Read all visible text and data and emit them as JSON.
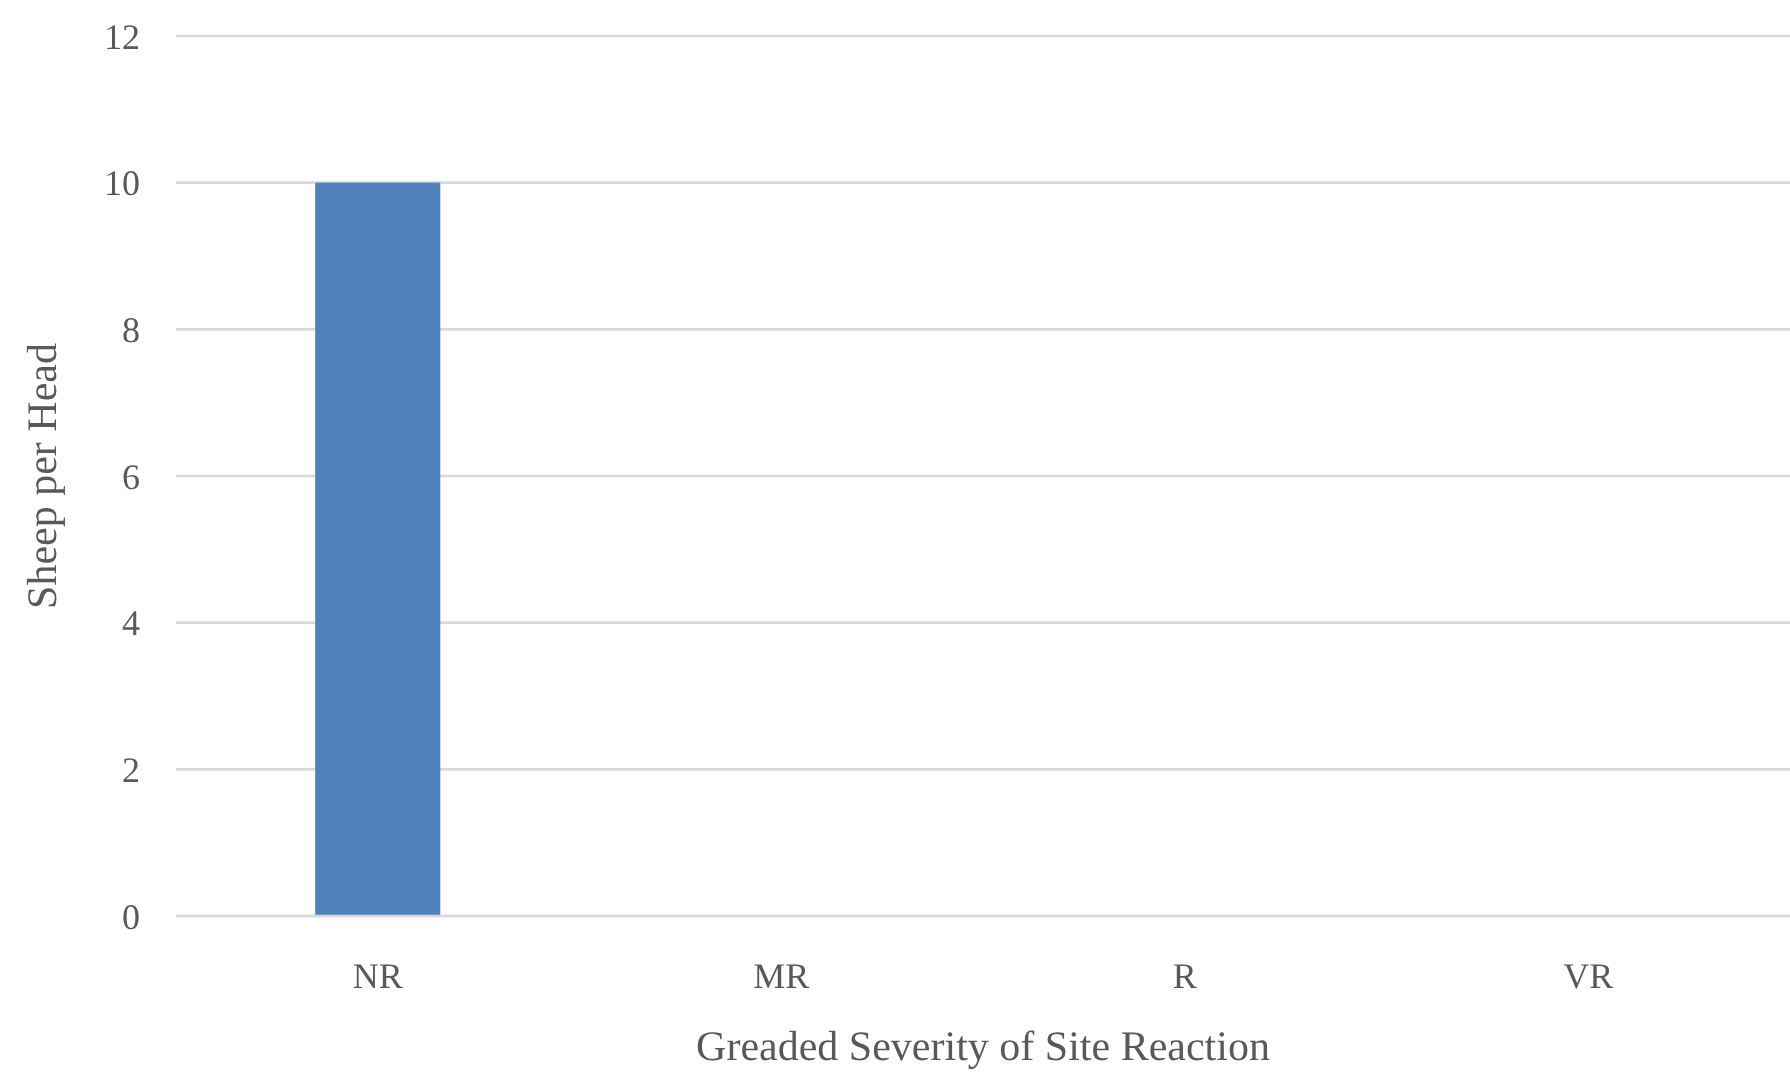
{
  "chart_data": {
    "type": "bar",
    "xlabel": "Greaded Severity of Site Reaction",
    "ylabel": "Sheep per Head",
    "categories": [
      "NR",
      "MR",
      "R",
      "VR"
    ],
    "values": [
      10,
      0,
      0,
      0
    ],
    "color": "#4f81bd",
    "ylim": [
      0,
      12
    ],
    "yticks": [
      0,
      2,
      4,
      6,
      8,
      10,
      12
    ],
    "grid": "y"
  }
}
